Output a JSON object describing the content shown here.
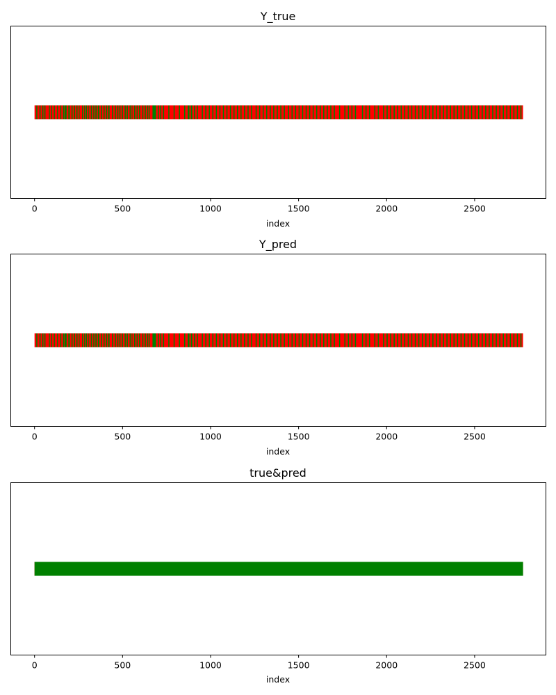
{
  "chart_data": [
    {
      "type": "barcode",
      "title": "Y_true",
      "xlabel": "index",
      "xlim": [
        -135,
        2905
      ],
      "xticks": [
        0,
        500,
        1000,
        1500,
        2000,
        2500
      ],
      "n_points": 2775,
      "colors": {
        "positive": "#ff0000",
        "negative": "#008000"
      },
      "negative_index_ranges": [
        [
          10,
          16
        ],
        [
          28,
          34
        ],
        [
          44,
          50
        ],
        [
          56,
          62
        ],
        [
          82,
          87
        ],
        [
          95,
          100
        ],
        [
          110,
          115
        ],
        [
          128,
          133
        ],
        [
          146,
          152
        ],
        [
          162,
          167
        ],
        [
          170,
          182
        ],
        [
          192,
          200
        ],
        [
          210,
          216
        ],
        [
          224,
          230
        ],
        [
          238,
          244
        ],
        [
          252,
          256
        ],
        [
          270,
          275
        ],
        [
          282,
          287
        ],
        [
          292,
          298
        ],
        [
          306,
          310
        ],
        [
          320,
          326
        ],
        [
          334,
          340
        ],
        [
          346,
          353
        ],
        [
          360,
          368
        ],
        [
          378,
          384
        ],
        [
          392,
          398
        ],
        [
          406,
          412
        ],
        [
          418,
          426
        ],
        [
          440,
          446
        ],
        [
          456,
          462
        ],
        [
          470,
          476
        ],
        [
          482,
          488
        ],
        [
          496,
          502
        ],
        [
          512,
          518
        ],
        [
          524,
          530
        ],
        [
          540,
          546
        ],
        [
          552,
          556
        ],
        [
          566,
          572
        ],
        [
          580,
          586
        ],
        [
          594,
          600
        ],
        [
          612,
          618
        ],
        [
          626,
          632
        ],
        [
          640,
          646
        ],
        [
          652,
          656
        ],
        [
          670,
          690
        ],
        [
          700,
          706
        ],
        [
          714,
          720
        ],
        [
          730,
          736
        ],
        [
          760,
          766
        ],
        [
          790,
          796
        ],
        [
          820,
          826
        ],
        [
          850,
          856
        ],
        [
          870,
          880
        ],
        [
          888,
          896
        ],
        [
          906,
          912
        ],
        [
          922,
          928
        ],
        [
          950,
          956
        ],
        [
          970,
          976
        ],
        [
          990,
          996
        ],
        [
          1010,
          1016
        ],
        [
          1030,
          1036
        ],
        [
          1050,
          1056
        ],
        [
          1070,
          1076
        ],
        [
          1090,
          1096
        ],
        [
          1110,
          1116
        ],
        [
          1130,
          1136
        ],
        [
          1150,
          1156
        ],
        [
          1170,
          1176
        ],
        [
          1190,
          1196
        ],
        [
          1210,
          1216
        ],
        [
          1230,
          1236
        ],
        [
          1256,
          1262
        ],
        [
          1276,
          1282
        ],
        [
          1296,
          1302
        ],
        [
          1316,
          1322
        ],
        [
          1336,
          1342
        ],
        [
          1356,
          1362
        ],
        [
          1376,
          1382
        ],
        [
          1396,
          1402
        ],
        [
          1416,
          1422
        ],
        [
          1440,
          1446
        ],
        [
          1460,
          1466
        ],
        [
          1480,
          1486
        ],
        [
          1500,
          1506
        ],
        [
          1520,
          1526
        ],
        [
          1540,
          1546
        ],
        [
          1560,
          1566
        ],
        [
          1580,
          1586
        ],
        [
          1600,
          1606
        ],
        [
          1620,
          1626
        ],
        [
          1640,
          1646
        ],
        [
          1660,
          1666
        ],
        [
          1680,
          1686
        ],
        [
          1700,
          1706
        ],
        [
          1730,
          1736
        ],
        [
          1760,
          1766
        ],
        [
          1780,
          1786
        ],
        [
          1800,
          1806
        ],
        [
          1820,
          1826
        ],
        [
          1860,
          1866
        ],
        [
          1880,
          1886
        ],
        [
          1900,
          1906
        ],
        [
          1930,
          1936
        ],
        [
          1950,
          1956
        ],
        [
          1980,
          1986
        ],
        [
          2000,
          2006
        ],
        [
          2020,
          2026
        ],
        [
          2040,
          2046
        ],
        [
          2060,
          2066
        ],
        [
          2080,
          2086
        ],
        [
          2100,
          2106
        ],
        [
          2120,
          2126
        ],
        [
          2140,
          2146
        ],
        [
          2160,
          2166
        ],
        [
          2180,
          2186
        ],
        [
          2200,
          2206
        ],
        [
          2220,
          2226
        ],
        [
          2240,
          2246
        ],
        [
          2260,
          2266
        ],
        [
          2280,
          2286
        ],
        [
          2300,
          2306
        ],
        [
          2320,
          2326
        ],
        [
          2340,
          2346
        ],
        [
          2360,
          2366
        ],
        [
          2380,
          2386
        ],
        [
          2400,
          2406
        ],
        [
          2420,
          2426
        ],
        [
          2440,
          2446
        ],
        [
          2460,
          2466
        ],
        [
          2480,
          2486
        ],
        [
          2500,
          2506
        ],
        [
          2520,
          2526
        ],
        [
          2540,
          2546
        ],
        [
          2560,
          2566
        ],
        [
          2580,
          2586
        ],
        [
          2600,
          2606
        ],
        [
          2620,
          2626
        ],
        [
          2640,
          2646
        ],
        [
          2660,
          2666
        ],
        [
          2680,
          2686
        ],
        [
          2700,
          2706
        ],
        [
          2720,
          2726
        ],
        [
          2740,
          2746
        ],
        [
          2760,
          2766
        ]
      ]
    },
    {
      "type": "barcode",
      "title": "Y_pred",
      "xlabel": "index",
      "xlim": [
        -135,
        2905
      ],
      "xticks": [
        0,
        500,
        1000,
        1500,
        2000,
        2500
      ],
      "n_points": 2775,
      "colors": {
        "positive": "#ff0000",
        "negative": "#008000"
      },
      "negative_index_ranges": [
        [
          10,
          16
        ],
        [
          28,
          34
        ],
        [
          44,
          50
        ],
        [
          56,
          62
        ],
        [
          82,
          87
        ],
        [
          95,
          100
        ],
        [
          110,
          115
        ],
        [
          128,
          133
        ],
        [
          146,
          152
        ],
        [
          162,
          167
        ],
        [
          170,
          182
        ],
        [
          192,
          200
        ],
        [
          210,
          216
        ],
        [
          224,
          230
        ],
        [
          238,
          244
        ],
        [
          252,
          256
        ],
        [
          270,
          275
        ],
        [
          282,
          287
        ],
        [
          292,
          298
        ],
        [
          306,
          310
        ],
        [
          320,
          326
        ],
        [
          334,
          340
        ],
        [
          346,
          353
        ],
        [
          360,
          368
        ],
        [
          378,
          384
        ],
        [
          392,
          398
        ],
        [
          406,
          412
        ],
        [
          418,
          426
        ],
        [
          440,
          446
        ],
        [
          456,
          462
        ],
        [
          470,
          476
        ],
        [
          482,
          488
        ],
        [
          496,
          502
        ],
        [
          512,
          518
        ],
        [
          524,
          530
        ],
        [
          540,
          546
        ],
        [
          552,
          556
        ],
        [
          566,
          572
        ],
        [
          580,
          586
        ],
        [
          594,
          600
        ],
        [
          612,
          618
        ],
        [
          626,
          632
        ],
        [
          640,
          646
        ],
        [
          652,
          656
        ],
        [
          670,
          690
        ],
        [
          700,
          706
        ],
        [
          714,
          720
        ],
        [
          730,
          736
        ],
        [
          760,
          766
        ],
        [
          790,
          796
        ],
        [
          820,
          826
        ],
        [
          850,
          856
        ],
        [
          870,
          880
        ],
        [
          888,
          896
        ],
        [
          906,
          912
        ],
        [
          922,
          928
        ],
        [
          950,
          956
        ],
        [
          970,
          976
        ],
        [
          990,
          996
        ],
        [
          1010,
          1016
        ],
        [
          1030,
          1036
        ],
        [
          1050,
          1056
        ],
        [
          1070,
          1076
        ],
        [
          1090,
          1096
        ],
        [
          1110,
          1116
        ],
        [
          1130,
          1136
        ],
        [
          1150,
          1156
        ],
        [
          1170,
          1176
        ],
        [
          1190,
          1196
        ],
        [
          1210,
          1216
        ],
        [
          1230,
          1236
        ],
        [
          1256,
          1262
        ],
        [
          1276,
          1282
        ],
        [
          1296,
          1302
        ],
        [
          1316,
          1322
        ],
        [
          1336,
          1342
        ],
        [
          1356,
          1362
        ],
        [
          1376,
          1382
        ],
        [
          1396,
          1402
        ],
        [
          1416,
          1422
        ],
        [
          1440,
          1446
        ],
        [
          1460,
          1466
        ],
        [
          1480,
          1486
        ],
        [
          1500,
          1506
        ],
        [
          1520,
          1526
        ],
        [
          1540,
          1546
        ],
        [
          1560,
          1566
        ],
        [
          1580,
          1586
        ],
        [
          1600,
          1606
        ],
        [
          1620,
          1626
        ],
        [
          1640,
          1646
        ],
        [
          1660,
          1666
        ],
        [
          1680,
          1686
        ],
        [
          1700,
          1706
        ],
        [
          1730,
          1736
        ],
        [
          1760,
          1766
        ],
        [
          1780,
          1786
        ],
        [
          1800,
          1806
        ],
        [
          1820,
          1826
        ],
        [
          1860,
          1866
        ],
        [
          1880,
          1886
        ],
        [
          1900,
          1906
        ],
        [
          1930,
          1936
        ],
        [
          1950,
          1956
        ],
        [
          1980,
          1986
        ],
        [
          2000,
          2006
        ],
        [
          2020,
          2026
        ],
        [
          2040,
          2046
        ],
        [
          2060,
          2066
        ],
        [
          2080,
          2086
        ],
        [
          2100,
          2106
        ],
        [
          2120,
          2126
        ],
        [
          2140,
          2146
        ],
        [
          2160,
          2166
        ],
        [
          2180,
          2186
        ],
        [
          2200,
          2206
        ],
        [
          2220,
          2226
        ],
        [
          2240,
          2246
        ],
        [
          2260,
          2266
        ],
        [
          2280,
          2286
        ],
        [
          2300,
          2306
        ],
        [
          2320,
          2326
        ],
        [
          2340,
          2346
        ],
        [
          2360,
          2366
        ],
        [
          2380,
          2386
        ],
        [
          2400,
          2406
        ],
        [
          2420,
          2426
        ],
        [
          2440,
          2446
        ],
        [
          2460,
          2466
        ],
        [
          2480,
          2486
        ],
        [
          2500,
          2506
        ],
        [
          2520,
          2526
        ],
        [
          2540,
          2546
        ],
        [
          2560,
          2566
        ],
        [
          2580,
          2586
        ],
        [
          2600,
          2606
        ],
        [
          2620,
          2626
        ],
        [
          2640,
          2646
        ],
        [
          2660,
          2666
        ],
        [
          2680,
          2686
        ],
        [
          2700,
          2706
        ],
        [
          2720,
          2726
        ],
        [
          2740,
          2746
        ],
        [
          2760,
          2766
        ]
      ]
    },
    {
      "type": "barcode",
      "title": "true&pred",
      "xlabel": "index",
      "xlim": [
        -135,
        2905
      ],
      "xticks": [
        0,
        500,
        1000,
        1500,
        2000,
        2500
      ],
      "n_points": 2775,
      "colors": {
        "positive": "#ff0000",
        "negative": "#008000"
      },
      "negative_index_ranges": [
        [
          0,
          2775
        ]
      ]
    }
  ]
}
